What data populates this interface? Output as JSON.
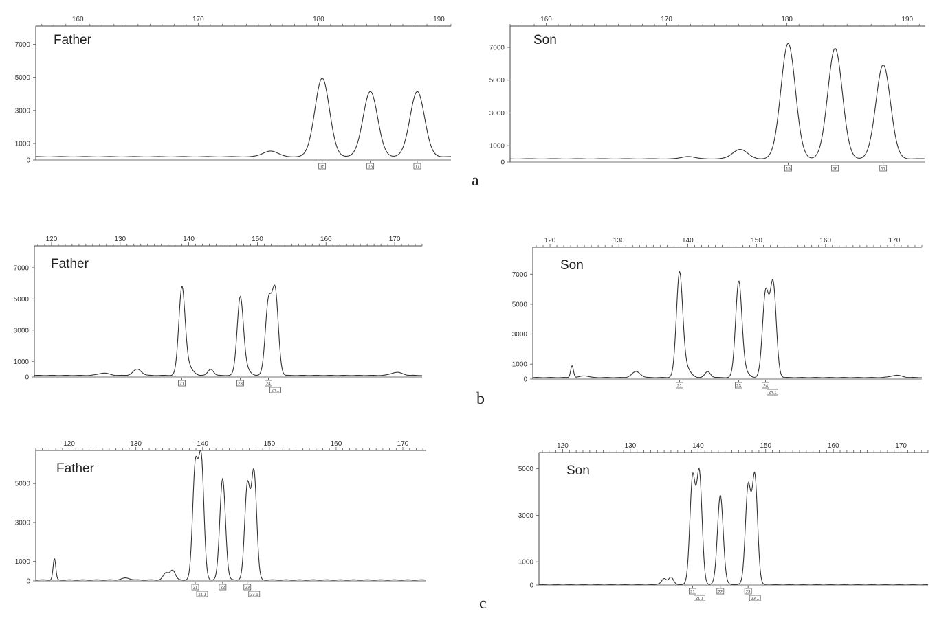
{
  "figure": {
    "row_labels": [
      "a",
      "b",
      "c"
    ]
  },
  "chart_data": [
    {
      "type": "line",
      "panel_label": "Father",
      "row": "a",
      "x_ticks": [
        160,
        170,
        180,
        190
      ],
      "y_ticks": [
        0,
        1000,
        3000,
        5000,
        7000
      ],
      "xlim": [
        156.5,
        191
      ],
      "ylim": [
        0,
        8100
      ],
      "grid": false,
      "baseline": 200,
      "peaks": [
        {
          "x": 176.0,
          "height": 350,
          "width": 0.6
        },
        {
          "x": 180.3,
          "height": 4750,
          "width": 0.6
        },
        {
          "x": 184.3,
          "height": 3950,
          "width": 0.6
        },
        {
          "x": 188.2,
          "height": 3950,
          "width": 0.6
        }
      ],
      "allele_calls": [
        {
          "x": 180.3,
          "labels": [
            "15"
          ]
        },
        {
          "x": 184.3,
          "labels": [
            "16"
          ]
        },
        {
          "x": 188.2,
          "labels": [
            "17"
          ]
        }
      ]
    },
    {
      "type": "line",
      "panel_label": "Son",
      "row": "a",
      "x_ticks": [
        160,
        170,
        180,
        190
      ],
      "y_ticks": [
        0,
        1000,
        3000,
        5000,
        7000
      ],
      "xlim": [
        157,
        191.5
      ],
      "ylim": [
        0,
        8300
      ],
      "grid": false,
      "baseline": 200,
      "peaks": [
        {
          "x": 171.8,
          "height": 150,
          "width": 0.5
        },
        {
          "x": 176.1,
          "height": 580,
          "width": 0.6
        },
        {
          "x": 180.1,
          "height": 7050,
          "width": 0.6
        },
        {
          "x": 184.0,
          "height": 6750,
          "width": 0.6
        },
        {
          "x": 188.0,
          "height": 5750,
          "width": 0.6
        }
      ],
      "allele_calls": [
        {
          "x": 180.1,
          "labels": [
            "15"
          ]
        },
        {
          "x": 184.0,
          "labels": [
            "16"
          ]
        },
        {
          "x": 188.0,
          "labels": [
            "17"
          ]
        }
      ]
    },
    {
      "type": "line",
      "panel_label": "Father",
      "row": "b",
      "x_ticks": [
        120,
        130,
        140,
        150,
        160,
        170
      ],
      "y_ticks": [
        0,
        1000,
        3000,
        5000,
        7000
      ],
      "xlim": [
        117.5,
        174
      ],
      "ylim": [
        0,
        8400
      ],
      "grid": false,
      "baseline": 100,
      "peaks": [
        {
          "x": 127.6,
          "height": 150,
          "width": 0.8
        },
        {
          "x": 132.5,
          "height": 400,
          "width": 0.6
        },
        {
          "x": 139.0,
          "height": 5400,
          "width": 0.45
        },
        {
          "x": 139.8,
          "height": 600,
          "width": 0.7
        },
        {
          "x": 143.2,
          "height": 400,
          "width": 0.4
        },
        {
          "x": 147.5,
          "height": 4900,
          "width": 0.45
        },
        {
          "x": 148.3,
          "height": 400,
          "width": 0.6
        },
        {
          "x": 151.6,
          "height": 4600,
          "width": 0.45
        },
        {
          "x": 152.6,
          "height": 5300,
          "width": 0.45
        },
        {
          "x": 170.3,
          "height": 200,
          "width": 0.8
        }
      ],
      "allele_calls": [
        {
          "x": 139.0,
          "labels": [
            "21"
          ]
        },
        {
          "x": 147.5,
          "labels": [
            "23"
          ]
        },
        {
          "x": 151.6,
          "labels": [
            "24",
            "24.1"
          ]
        }
      ]
    },
    {
      "type": "line",
      "panel_label": "Son",
      "row": "b",
      "x_ticks": [
        120,
        130,
        140,
        150,
        160,
        170
      ],
      "y_ticks": [
        0,
        1000,
        3000,
        5000,
        7000
      ],
      "xlim": [
        117.5,
        174
      ],
      "ylim": [
        0,
        8800
      ],
      "grid": false,
      "baseline": 100,
      "peaks": [
        {
          "x": 123.2,
          "height": 800,
          "width": 0.2
        },
        {
          "x": 125.0,
          "height": 120,
          "width": 0.6
        },
        {
          "x": 132.5,
          "height": 400,
          "width": 0.6
        },
        {
          "x": 138.8,
          "height": 6700,
          "width": 0.45
        },
        {
          "x": 139.6,
          "height": 700,
          "width": 0.7
        },
        {
          "x": 142.9,
          "height": 400,
          "width": 0.4
        },
        {
          "x": 147.4,
          "height": 6300,
          "width": 0.45
        },
        {
          "x": 148.2,
          "height": 400,
          "width": 0.6
        },
        {
          "x": 151.3,
          "height": 5600,
          "width": 0.45
        },
        {
          "x": 152.4,
          "height": 6200,
          "width": 0.45
        },
        {
          "x": 170.3,
          "height": 150,
          "width": 0.8
        }
      ],
      "allele_calls": [
        {
          "x": 138.8,
          "labels": [
            "21"
          ]
        },
        {
          "x": 147.4,
          "labels": [
            "23"
          ]
        },
        {
          "x": 151.3,
          "labels": [
            "24",
            "24.1"
          ]
        }
      ]
    },
    {
      "type": "line",
      "panel_label": "Father",
      "row": "c",
      "x_ticks": [
        120,
        130,
        140,
        150,
        160,
        170
      ],
      "y_ticks": [
        0,
        1000,
        3000,
        5000
      ],
      "xlim": [
        115,
        173.5
      ],
      "ylim": [
        0,
        6700
      ],
      "grid": false,
      "baseline": 50,
      "peaks": [
        {
          "x": 117.8,
          "height": 1100,
          "width": 0.2
        },
        {
          "x": 128.5,
          "height": 100,
          "width": 0.6
        },
        {
          "x": 134.5,
          "height": 350,
          "width": 0.4
        },
        {
          "x": 135.5,
          "height": 500,
          "width": 0.4
        },
        {
          "x": 138.9,
          "height": 5700,
          "width": 0.4
        },
        {
          "x": 139.8,
          "height": 6100,
          "width": 0.4
        },
        {
          "x": 143.0,
          "height": 5200,
          "width": 0.42
        },
        {
          "x": 146.7,
          "height": 4800,
          "width": 0.4
        },
        {
          "x": 147.7,
          "height": 5500,
          "width": 0.4
        }
      ],
      "allele_calls": [
        {
          "x": 138.9,
          "labels": [
            "21",
            "21.1"
          ]
        },
        {
          "x": 143.0,
          "labels": [
            "22"
          ]
        },
        {
          "x": 146.7,
          "labels": [
            "23",
            "23.1"
          ]
        }
      ]
    },
    {
      "type": "line",
      "panel_label": "Son",
      "row": "c",
      "x_ticks": [
        120,
        130,
        140,
        150,
        160,
        170
      ],
      "y_ticks": [
        0,
        1000,
        3000,
        5000
      ],
      "xlim": [
        116.5,
        174
      ],
      "ylim": [
        0,
        5700
      ],
      "grid": false,
      "baseline": 30,
      "peaks": [
        {
          "x": 135.0,
          "height": 250,
          "width": 0.35
        },
        {
          "x": 136.0,
          "height": 300,
          "width": 0.35
        },
        {
          "x": 139.2,
          "height": 4550,
          "width": 0.4
        },
        {
          "x": 140.2,
          "height": 4750,
          "width": 0.4
        },
        {
          "x": 143.3,
          "height": 3850,
          "width": 0.42
        },
        {
          "x": 147.4,
          "height": 4150,
          "width": 0.4
        },
        {
          "x": 148.4,
          "height": 4600,
          "width": 0.4
        }
      ],
      "allele_calls": [
        {
          "x": 139.2,
          "labels": [
            "21",
            "21.1"
          ]
        },
        {
          "x": 143.3,
          "labels": [
            "22"
          ]
        },
        {
          "x": 147.4,
          "labels": [
            "23",
            "23.1"
          ]
        }
      ]
    }
  ]
}
